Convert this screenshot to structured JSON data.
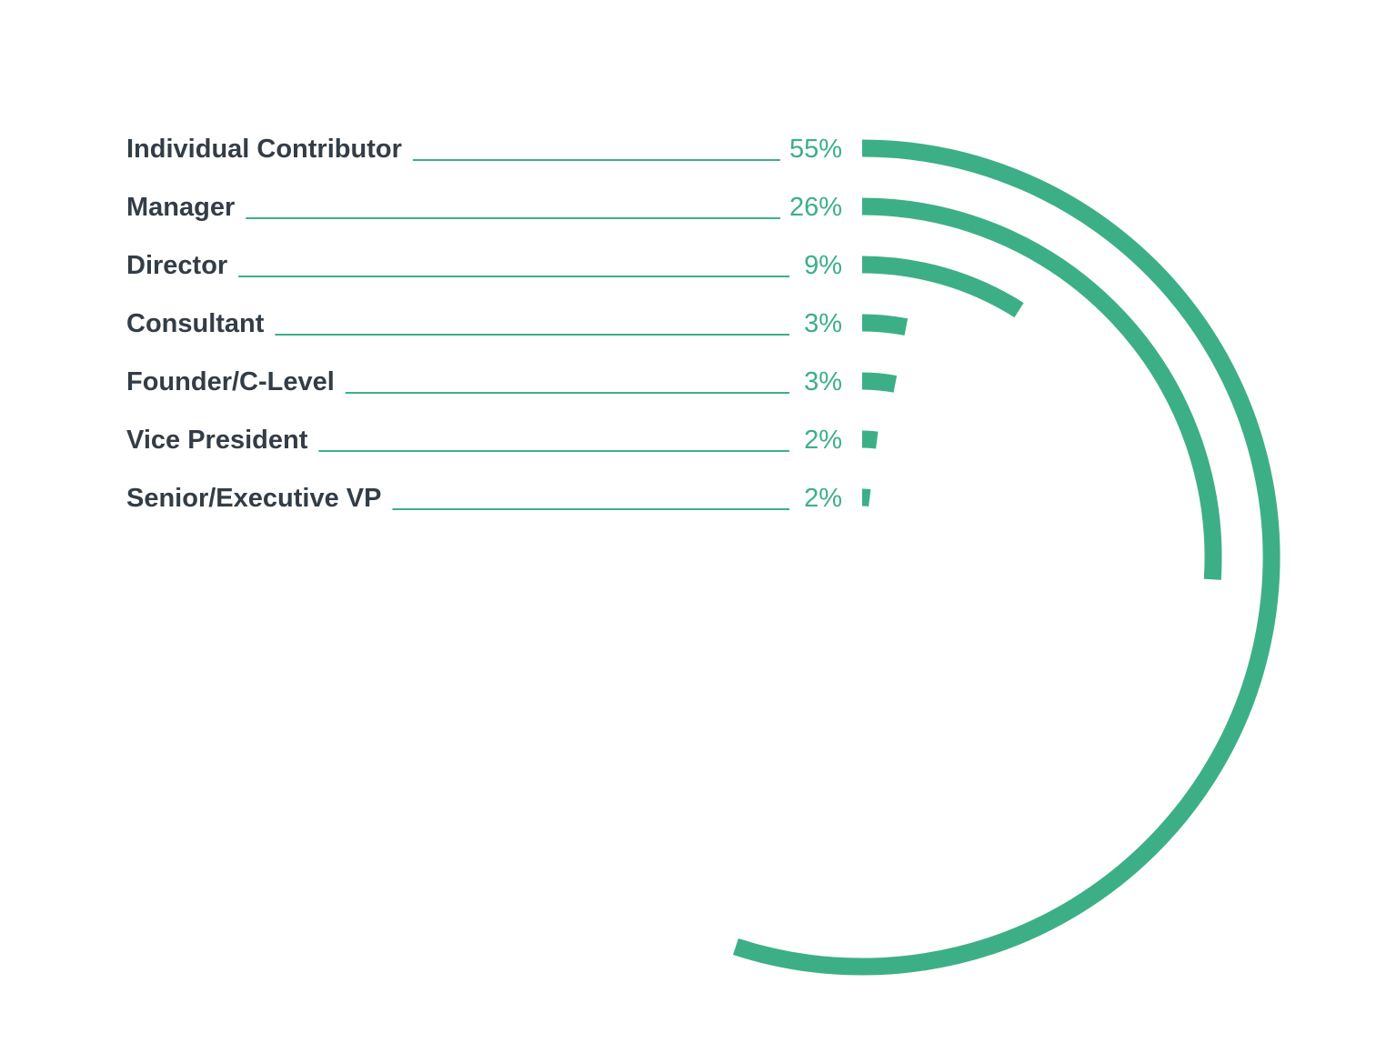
{
  "chart_data": {
    "type": "radial-bar",
    "title": "",
    "categories": [
      "Individual Contributor",
      "Manager",
      "Director",
      "Consultant",
      "Founder/C-Level",
      "Vice President",
      "Senior/Executive VP"
    ],
    "values": [
      55,
      26,
      9,
      3,
      3,
      2,
      2
    ],
    "value_labels": [
      "55%",
      "26%",
      "9%",
      "3%",
      "3%",
      "2%",
      "2%"
    ],
    "unit": "%",
    "value_max": 100,
    "colors": {
      "bar": "#3daf87",
      "label": "#333d47",
      "leader": "#3daf87",
      "value_text": "#3daf87"
    }
  }
}
